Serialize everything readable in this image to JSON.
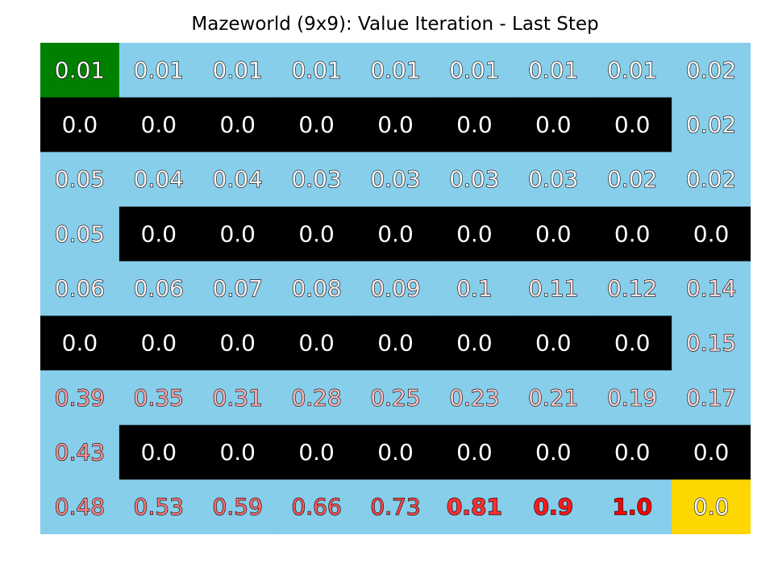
{
  "title": "Mazeworld (9x9): Value Iteration - Last Step",
  "chart_data": {
    "type": "heatmap",
    "title": "Mazeworld (9x9): Value Iteration - Last Step",
    "rows": 9,
    "cols": 9,
    "grid": [
      [
        "start",
        "free",
        "free",
        "free",
        "free",
        "free",
        "free",
        "free",
        "free"
      ],
      [
        "wall",
        "wall",
        "wall",
        "wall",
        "wall",
        "wall",
        "wall",
        "wall",
        "free"
      ],
      [
        "free",
        "free",
        "free",
        "free",
        "free",
        "free",
        "free",
        "free",
        "free"
      ],
      [
        "free",
        "wall",
        "wall",
        "wall",
        "wall",
        "wall",
        "wall",
        "wall",
        "wall"
      ],
      [
        "free",
        "free",
        "free",
        "free",
        "free",
        "free",
        "free",
        "free",
        "free"
      ],
      [
        "wall",
        "wall",
        "wall",
        "wall",
        "wall",
        "wall",
        "wall",
        "wall",
        "free"
      ],
      [
        "free",
        "free",
        "free",
        "free",
        "free",
        "free",
        "free",
        "free",
        "free"
      ],
      [
        "free",
        "wall",
        "wall",
        "wall",
        "wall",
        "wall",
        "wall",
        "wall",
        "wall"
      ],
      [
        "free",
        "free",
        "free",
        "free",
        "free",
        "free",
        "free",
        "free",
        "goal"
      ]
    ],
    "values": [
      [
        "0.01",
        "0.01",
        "0.01",
        "0.01",
        "0.01",
        "0.01",
        "0.01",
        "0.01",
        "0.02"
      ],
      [
        "0.0",
        "0.0",
        "0.0",
        "0.0",
        "0.0",
        "0.0",
        "0.0",
        "0.0",
        "0.02"
      ],
      [
        "0.05",
        "0.04",
        "0.04",
        "0.03",
        "0.03",
        "0.03",
        "0.03",
        "0.02",
        "0.02"
      ],
      [
        "0.05",
        "0.0",
        "0.0",
        "0.0",
        "0.0",
        "0.0",
        "0.0",
        "0.0",
        "0.0"
      ],
      [
        "0.06",
        "0.06",
        "0.07",
        "0.08",
        "0.09",
        "0.1",
        "0.11",
        "0.12",
        "0.14"
      ],
      [
        "0.0",
        "0.0",
        "0.0",
        "0.0",
        "0.0",
        "0.0",
        "0.0",
        "0.0",
        "0.15"
      ],
      [
        "0.39",
        "0.35",
        "0.31",
        "0.28",
        "0.25",
        "0.23",
        "0.21",
        "0.19",
        "0.17"
      ],
      [
        "0.43",
        "0.0",
        "0.0",
        "0.0",
        "0.0",
        "0.0",
        "0.0",
        "0.0",
        "0.0"
      ],
      [
        "0.48",
        "0.53",
        "0.59",
        "0.66",
        "0.73",
        "0.81",
        "0.9",
        "1.0",
        "0.0"
      ]
    ],
    "colors": {
      "free": "#87ceeb",
      "wall": "#000000",
      "start": "#008000",
      "goal": "#ffd700",
      "wall_text": "#ffffff",
      "value_low": "#ffffff",
      "value_high": "#ff0000",
      "outline": "#000000"
    },
    "grid_lines": false,
    "axes_visible": false
  }
}
